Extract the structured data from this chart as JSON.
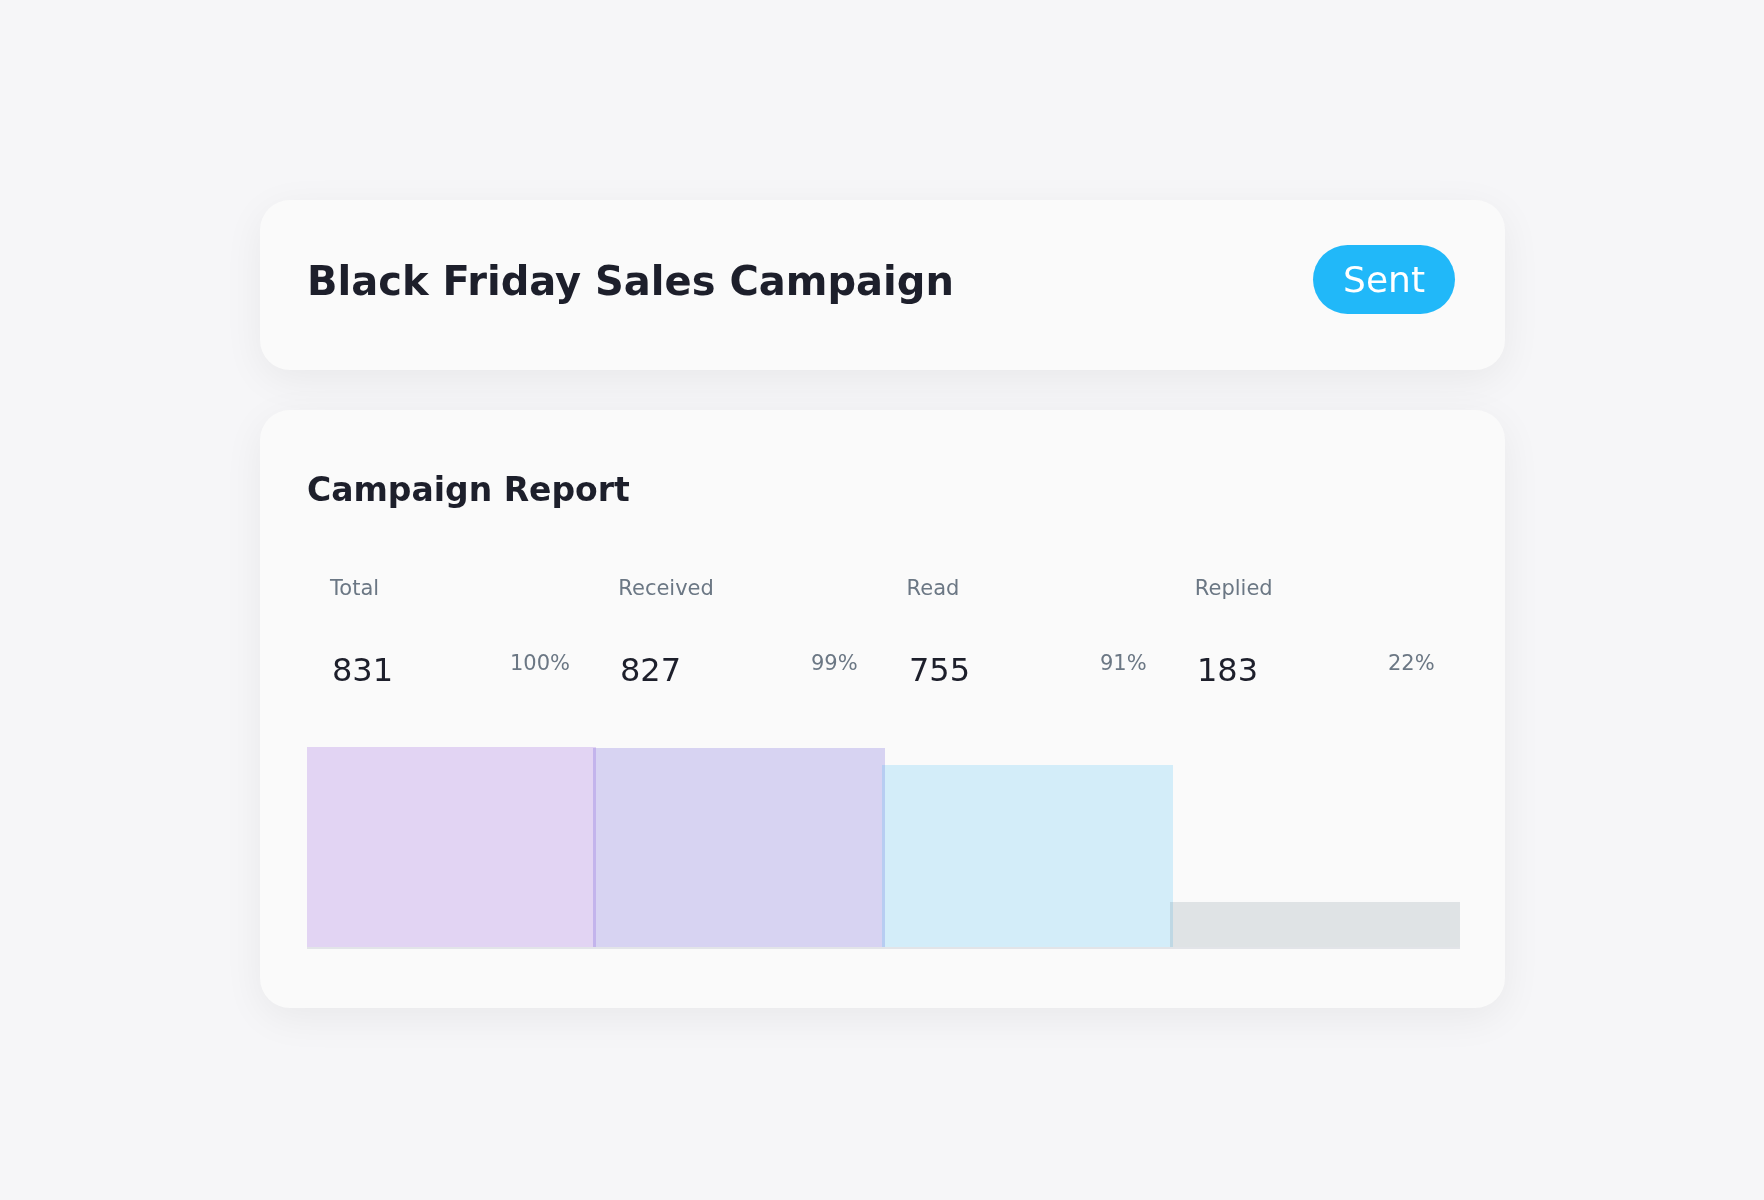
{
  "chart_data": {
    "type": "bar",
    "title": "Black Friday Sales Campaign",
    "subtitle": "Campaign Report",
    "categories": [
      "Total",
      "Received",
      "Read",
      "Replied"
    ],
    "values": [
      831,
      827,
      755,
      183
    ],
    "colors": [
      "#7b2fd6",
      "#3d2bd0",
      "#29b6f6",
      "#6b7d88"
    ],
    "data_labels": true,
    "annotations": [
      "Sent",
      "100%",
      "99%",
      "91%",
      "22%"
    ]
  }
}
